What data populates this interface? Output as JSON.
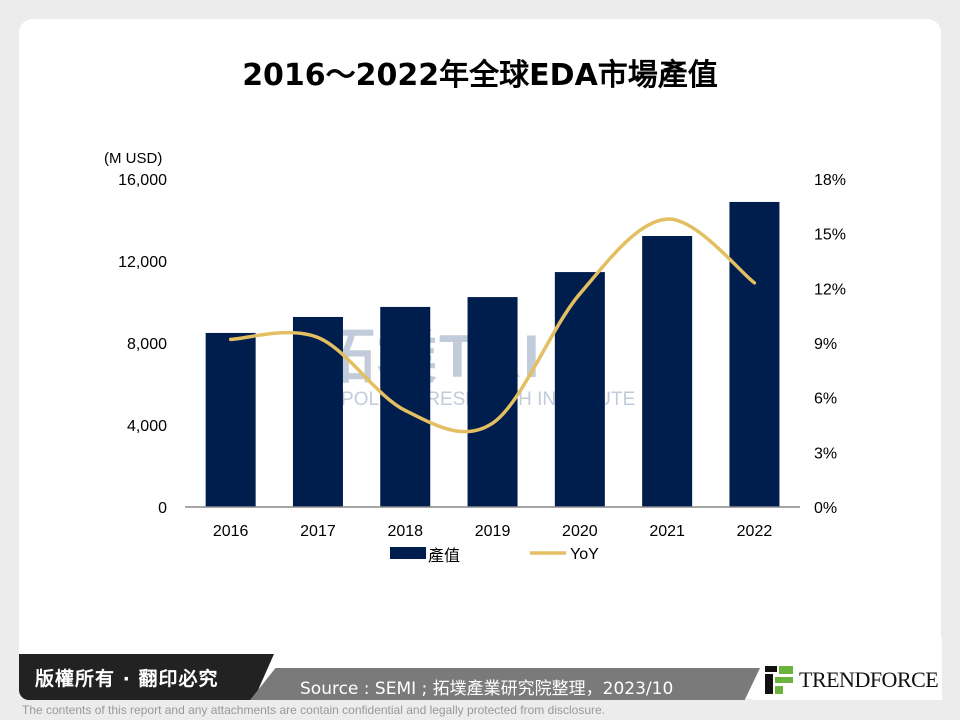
{
  "title": "2016～2022年全球EDA市場產值",
  "chart_data": {
    "type": "bar+line",
    "title": "2016～2022年全球EDA市場產值",
    "categories": [
      "2016",
      "2017",
      "2018",
      "2019",
      "2020",
      "2021",
      "2022"
    ],
    "left_axis": {
      "unit_label": "(M USD)",
      "ylim": [
        0,
        16000
      ],
      "ticks": [
        "0",
        "4,000",
        "8,000",
        "12,000",
        "16,000"
      ],
      "tick_values": [
        0,
        4000,
        8000,
        12000,
        16000
      ]
    },
    "right_axis": {
      "ylim": [
        0,
        18
      ],
      "ticks": [
        "0%",
        "3%",
        "6%",
        "9%",
        "12%",
        "15%",
        "18%"
      ],
      "tick_values": [
        0,
        3,
        6,
        9,
        12,
        15,
        18
      ]
    },
    "series": [
      {
        "name": "產值",
        "type": "bar",
        "axis": "left",
        "color": "#001e4d",
        "values": [
          8490,
          9270,
          9760,
          10240,
          11460,
          13220,
          14880
        ]
      },
      {
        "name": "YoY",
        "type": "line",
        "axis": "right",
        "color": "#e3bf62",
        "smooth": true,
        "values": [
          9.2,
          9.3,
          5.3,
          4.6,
          11.7,
          15.8,
          12.3
        ]
      }
    ],
    "grid": false,
    "legend": "bottom"
  },
  "watermark": {
    "main": "拓墣TRI",
    "sub": "TOPOLOGY RESEARCH INSTITUTE"
  },
  "footer": {
    "copyright": "版權所有 · 翻印必究",
    "source": "Source : SEMI ; 拓墣產業研究院整理，2023/10",
    "brand": "TRENDFORCE",
    "disclaimer": "The contents of this report and any attachments are contain confidential and legally protected from disclosure."
  }
}
